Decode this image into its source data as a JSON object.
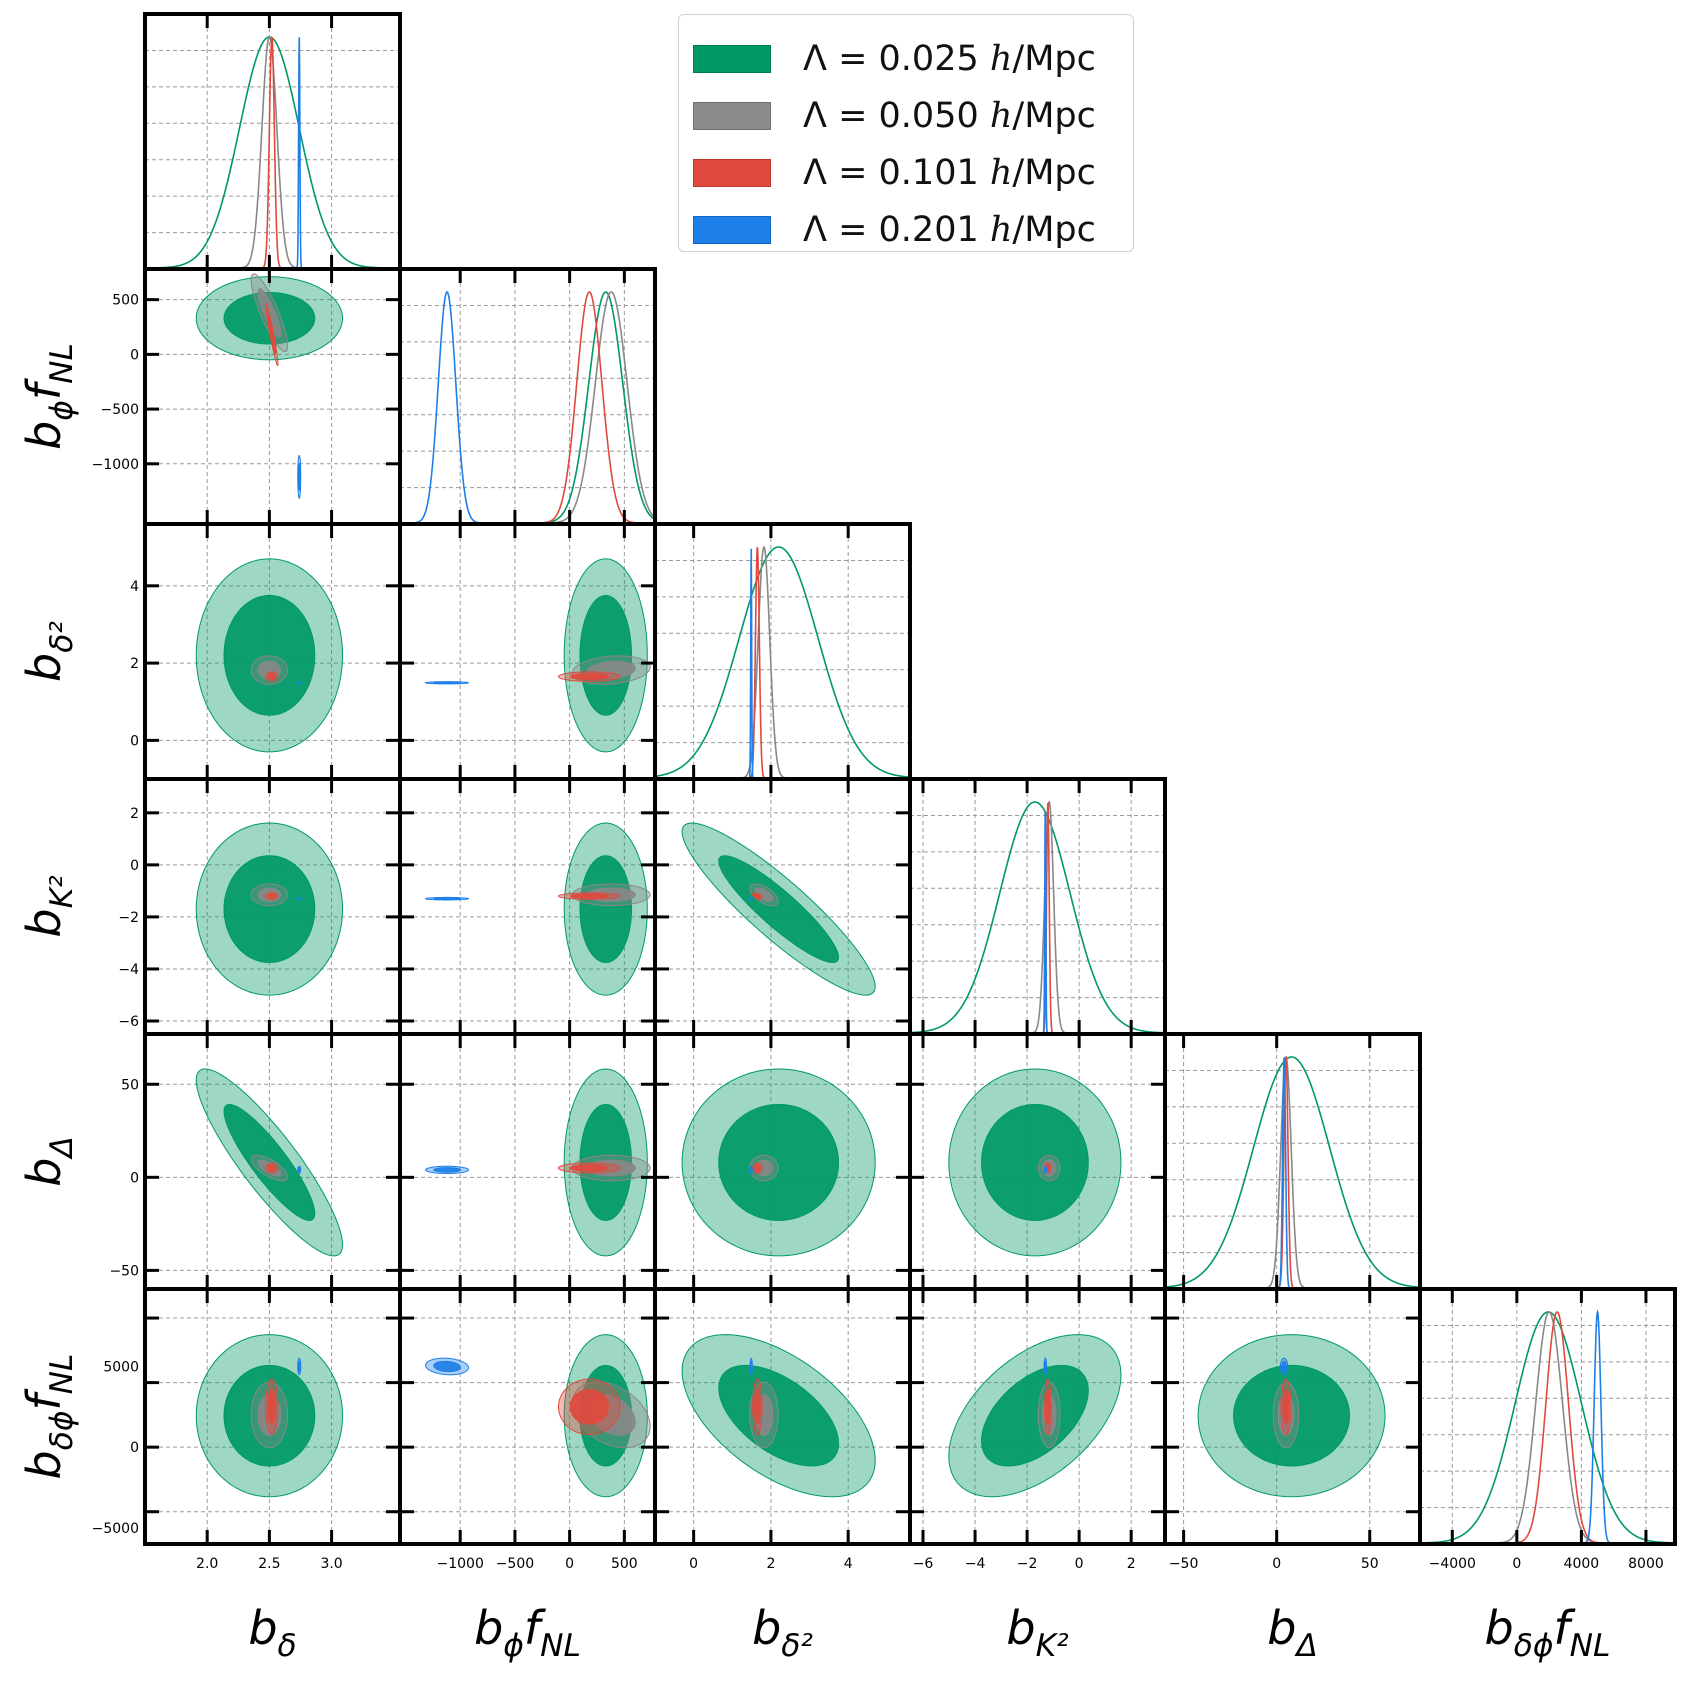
{
  "chart_data": {
    "type": "corner",
    "title": "",
    "parameters": [
      {
        "label_base": "b",
        "label_sub": "δ",
        "label_post": "",
        "range": [
          1.5,
          3.55
        ],
        "ticks": [
          2.0,
          2.5,
          3.0
        ],
        "tick_labels": [
          "2.0",
          "2.5",
          "3.0"
        ]
      },
      {
        "label_base": "b",
        "label_sub": "ϕ",
        "label_post": "f",
        "label_post_sub": "NL",
        "range": [
          -1550,
          780
        ],
        "ticks": [
          -1000,
          -500,
          0,
          500
        ],
        "tick_labels": [
          "−1000",
          "−500",
          "0",
          "500"
        ]
      },
      {
        "label_base": "b",
        "label_sub": "δ²",
        "label_post": "",
        "range": [
          -1.0,
          5.6
        ],
        "ticks": [
          0,
          2,
          4
        ],
        "tick_labels": [
          "0",
          "2",
          "4"
        ]
      },
      {
        "label_base": "b",
        "label_sub": "K²",
        "label_post": "",
        "range": [
          -6.5,
          3.3
        ],
        "ticks": [
          -6,
          -4,
          -2,
          0,
          2
        ],
        "tick_labels": [
          "−6",
          "−4",
          "−2",
          "0",
          "2"
        ]
      },
      {
        "label_base": "b",
        "label_sub": "Δ",
        "label_post": "",
        "range": [
          -60,
          77
        ],
        "ticks": [
          -50,
          0,
          50
        ],
        "tick_labels": [
          "−50",
          "0",
          "50"
        ]
      },
      {
        "label_base": "b",
        "label_sub": "δϕ",
        "label_post": "f",
        "label_post_sub": "NL",
        "range": [
          -6000,
          9800
        ],
        "ticks": [
          -4000,
          0,
          4000,
          8000
        ],
        "tick_labels": [
          "−4000",
          "0",
          "4000",
          "8000"
        ]
      }
    ],
    "left_tick_labels": {
      "row_1": [
        "500",
        "0",
        "−500",
        "−1000"
      ],
      "row_2": [
        "0",
        "2",
        "4"
      ],
      "row_3": [
        "−6",
        "−4",
        "−2",
        "0",
        "2"
      ],
      "row_4": [
        "−50",
        "0",
        "50"
      ],
      "row_5": [
        "−5000",
        "0",
        "5000"
      ]
    },
    "left_tick_values": {
      "row_1": [
        500,
        0,
        -500,
        -1000
      ],
      "row_2": [
        0,
        2,
        4
      ],
      "row_3": [
        -6,
        -4,
        -2,
        0,
        2
      ],
      "row_4": [
        -50,
        0,
        50
      ],
      "row_5": [
        -5000,
        0,
        5000
      ]
    },
    "series": [
      {
        "name": "Λ = 0.025 h/Mpc",
        "color": "#009966",
        "mean": [
          2.5,
          330,
          2.2,
          -1.7,
          8,
          1950
        ],
        "sigma": [
          0.24,
          155,
          1.02,
          1.35,
          20.5,
          2050
        ],
        "corr": {
          "0_4": -0.88,
          "0_5": 0.0,
          "1_2": 0.0,
          "2_3": -0.9,
          "2_5": -0.55,
          "3_5": 0.5
        }
      },
      {
        "name": "Λ = 0.050 h/Mpc",
        "color": "#888888",
        "mean": [
          2.5,
          380,
          1.82,
          -1.15,
          5,
          2000
        ],
        "sigma": [
          0.06,
          145,
          0.15,
          0.17,
          2.8,
          830
        ],
        "corr": {
          "0_1": -0.85,
          "1_2": 0.2,
          "1_5": -0.35,
          "2_3": -0.6,
          "0_4": -0.7
        }
      },
      {
        "name": "Λ = 0.101 h/Mpc",
        "color": "#E04A3E",
        "mean": [
          2.52,
          180,
          1.65,
          -1.2,
          5,
          2500
        ],
        "sigma": [
          0.02,
          115,
          0.05,
          0.05,
          1.1,
          700
        ],
        "corr": {
          "0_1": -0.95,
          "1_5": 0.0,
          "2_3": -0.5
        }
      },
      {
        "name": "Λ = 0.201 h/Mpc",
        "color": "#1f7fe8",
        "mean": [
          2.74,
          -1120,
          1.49,
          -1.3,
          4,
          5000
        ],
        "sigma": [
          0.005,
          80,
          0.012,
          0.02,
          0.8,
          210
        ],
        "corr": {
          "1_5": -0.15
        }
      }
    ],
    "legend": {
      "position": "top-right",
      "entries": [
        {
          "prefix": "Λ =  ",
          "value": "0.025",
          "unit_italic": "h",
          "unit_rest": "/Mpc",
          "color": "#009966"
        },
        {
          "prefix": "Λ =  ",
          "value": "0.050",
          "unit_italic": "h",
          "unit_rest": "/Mpc",
          "color": "#888888"
        },
        {
          "prefix": "Λ =  ",
          "value": "0.101",
          "unit_italic": "h",
          "unit_rest": "/Mpc",
          "color": "#E04A3E"
        },
        {
          "prefix": "Λ =  ",
          "value": "0.201",
          "unit_italic": "h",
          "unit_rest": "/Mpc",
          "color": "#1f7fe8"
        }
      ]
    },
    "contour_levels": [
      "68%",
      "95%"
    ],
    "grid": true
  }
}
